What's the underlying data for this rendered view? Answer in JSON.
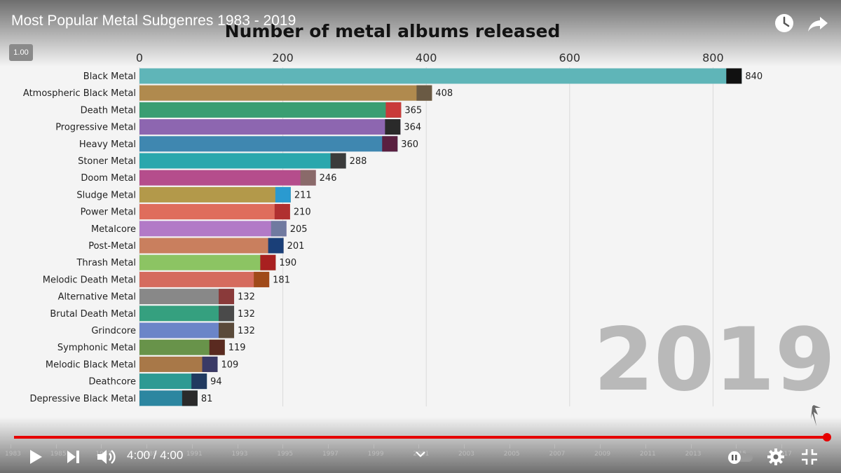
{
  "player": {
    "video_title": "Most Popular Metal Subgenres 1983 - 2019",
    "speed_label": "1.00",
    "time_display": "4:00 / 4:00",
    "progress_fraction": 1.0,
    "timeline_years": [
      "1983",
      "1985",
      "1987",
      "1989",
      "1991",
      "1993",
      "1995",
      "1997",
      "1999",
      "2001",
      "2003",
      "2005",
      "2007",
      "2009",
      "2011",
      "2013",
      "2015",
      "2017"
    ],
    "icons": {
      "watch_later": "clock-icon",
      "share": "share-arrow-icon",
      "play": "play-icon",
      "next": "next-icon",
      "volume": "volume-icon",
      "autoplay": "autoplay-toggle-icon",
      "settings": "gear-icon",
      "exit_fullscreen": "exit-fullscreen-icon",
      "chapters": "chevron-down-icon"
    },
    "colors": {
      "progress": "#e60000"
    }
  },
  "chart_data": {
    "type": "bar",
    "orientation": "horizontal",
    "title": "Number of metal albums released",
    "year_label": "2019",
    "xlim": [
      0,
      900
    ],
    "x_ticks": [
      0,
      200,
      400,
      600,
      800
    ],
    "grid": true,
    "categories": [
      "Black Metal",
      "Atmospheric Black Metal",
      "Death Metal",
      "Progressive Metal",
      "Heavy Metal",
      "Stoner Metal",
      "Doom Metal",
      "Sludge Metal",
      "Power Metal",
      "Metalcore",
      "Post-Metal",
      "Thrash Metal",
      "Melodic Death Metal",
      "Alternative Metal",
      "Brutal Death Metal",
      "Grindcore",
      "Symphonic Metal",
      "Melodic Black Metal",
      "Deathcore",
      "Depressive Black Metal"
    ],
    "values": [
      840,
      408,
      365,
      364,
      360,
      288,
      246,
      211,
      210,
      205,
      201,
      190,
      181,
      132,
      132,
      132,
      119,
      109,
      94,
      81
    ],
    "colors": [
      "#5fb5b8",
      "#b08a4e",
      "#3a9e72",
      "#8d66b0",
      "#3f87b0",
      "#2aa7ad",
      "#b54d8c",
      "#b3994a",
      "#df6d5c",
      "#b27ac7",
      "#c97f5e",
      "#8cc463",
      "#d56b5e",
      "#888888",
      "#35a07f",
      "#6b85c8",
      "#68934a",
      "#a87848",
      "#2e9a93",
      "#2c86a0"
    ],
    "thumb_colors": [
      "#111111",
      "#6a5a44",
      "#c93a3a",
      "#2a2a2a",
      "#5a2040",
      "#3b3b3b",
      "#8a6a6a",
      "#2a9ad0",
      "#b03030",
      "#707aa0",
      "#1a3f78",
      "#a82020",
      "#a04a1a",
      "#8a3a3a",
      "#4a4a4a",
      "#5a4a3a",
      "#5a2a20",
      "#3a3a66",
      "#203a60",
      "#2a2a2a"
    ]
  }
}
